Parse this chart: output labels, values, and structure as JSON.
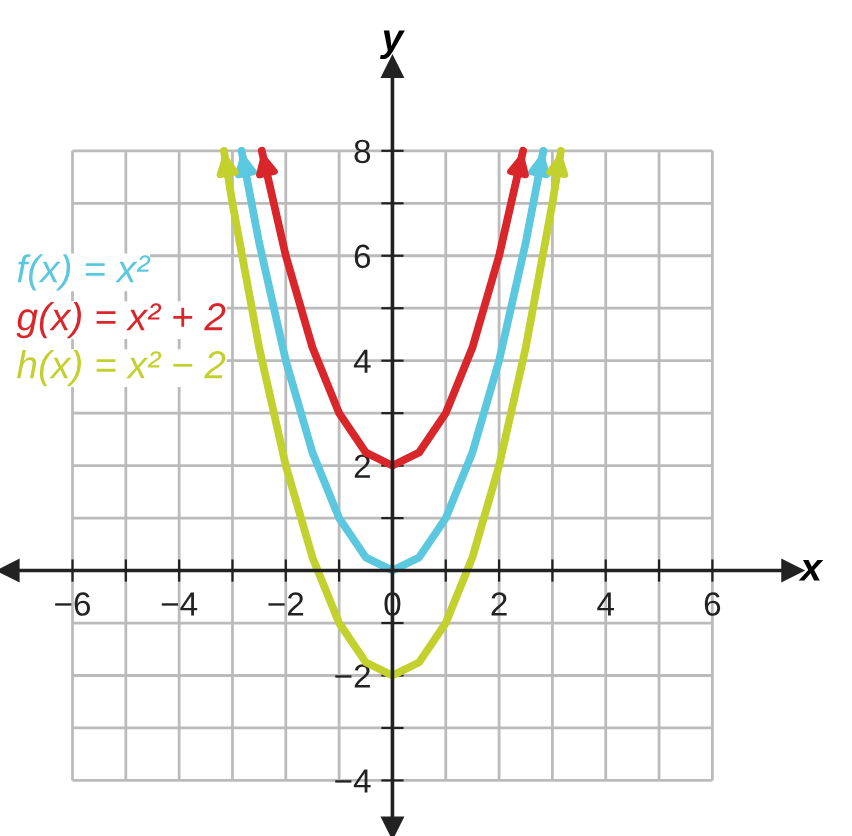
{
  "chart_data": {
    "type": "line",
    "xlabel": "x",
    "ylabel": "y",
    "xlim": [
      -7.2,
      7.5
    ],
    "ylim": [
      -4.9,
      9.6
    ],
    "xticks": [
      {
        "value": -6,
        "label": "−6"
      },
      {
        "value": -5,
        "label": null
      },
      {
        "value": -4,
        "label": "−4"
      },
      {
        "value": -3,
        "label": null
      },
      {
        "value": -2,
        "label": "−2"
      },
      {
        "value": -1,
        "label": null
      },
      {
        "value": 0,
        "label": "0"
      },
      {
        "value": 1,
        "label": null
      },
      2,
      {
        "value": 3,
        "label": null
      },
      4,
      {
        "value": 5,
        "label": null
      },
      6
    ],
    "yticks": [
      {
        "value": -4,
        "label": "−4"
      },
      {
        "value": -3,
        "label": null
      },
      {
        "value": -2,
        "label": "−2"
      },
      {
        "value": -1,
        "label": null
      },
      {
        "value": 0,
        "label": null
      },
      {
        "value": 1,
        "label": null
      },
      2,
      {
        "value": 3,
        "label": null
      },
      4,
      {
        "value": 5,
        "label": null
      },
      6,
      {
        "value": 7,
        "label": null
      },
      8
    ],
    "grid": true,
    "legend": "top left",
    "marker": "none",
    "line_style": "solid",
    "series": [
      {
        "name": "f(x) = x²",
        "color": "#5bc8e0",
        "x": [
          -2.83,
          -2.5,
          -2,
          -1.5,
          -1,
          -0.5,
          0,
          0.5,
          1,
          1.5,
          2,
          2.5,
          2.83
        ],
        "values": [
          8,
          6.25,
          4,
          2.25,
          1,
          0.25,
          0,
          0.25,
          1,
          2.25,
          4,
          6.25,
          8
        ]
      },
      {
        "name": "g(x) = x² + 2",
        "color": "#d9262b",
        "x": [
          -2.45,
          -2,
          -1.5,
          -1,
          -0.5,
          0,
          0.5,
          1,
          1.5,
          2,
          2.45
        ],
        "values": [
          8,
          6,
          4.25,
          3,
          2.25,
          2,
          2.25,
          3,
          4.25,
          6,
          8
        ]
      },
      {
        "name": "h(x) = x² − 2",
        "color": "#c3d12e",
        "x": [
          -3.16,
          -3,
          -2.5,
          -2,
          -1.5,
          -1,
          -0.5,
          0,
          0.5,
          1,
          1.5,
          2,
          2.5,
          3,
          3.16
        ],
        "values": [
          8,
          7,
          4.25,
          2,
          0.25,
          -1,
          -1.75,
          -2,
          -1.75,
          -1,
          0.25,
          2,
          4.25,
          7,
          8
        ]
      }
    ]
  }
}
